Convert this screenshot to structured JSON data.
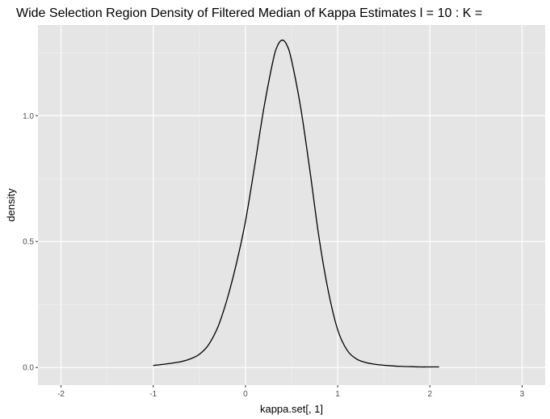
{
  "chart_data": {
    "type": "line",
    "title": "Wide Selection Region Density of Filtered Median of Kappa Estimates l = 10 : K =",
    "xlabel": "kappa.set[, 1]",
    "ylabel": "density",
    "xlim": [
      -2.25,
      3.25
    ],
    "ylim": [
      -0.07,
      1.36
    ],
    "x_ticks": [
      -2,
      -1,
      0,
      1,
      2,
      3
    ],
    "x_tick_labels": [
      "-2",
      "-1",
      "0",
      "1",
      "2",
      "3"
    ],
    "y_ticks": [
      0.0,
      0.5,
      1.0
    ],
    "y_tick_labels": [
      "0.0",
      "0.5",
      "1.0"
    ],
    "grid": true,
    "colors": {
      "panel": "#e5e5e5",
      "grid_major": "#ffffff",
      "line": "#000000"
    },
    "series": [
      {
        "x": [
          -1.0,
          -0.9,
          -0.8,
          -0.7,
          -0.6,
          -0.5,
          -0.4,
          -0.3,
          -0.2,
          -0.1,
          0.0,
          0.1,
          0.2,
          0.3,
          0.35,
          0.4,
          0.45,
          0.5,
          0.6,
          0.7,
          0.8,
          0.9,
          1.0,
          1.1,
          1.2,
          1.3,
          1.4,
          1.5,
          1.6,
          1.7,
          1.8,
          1.9,
          2.0,
          2.1
        ],
        "values": [
          0.008,
          0.012,
          0.017,
          0.023,
          0.034,
          0.052,
          0.09,
          0.16,
          0.27,
          0.41,
          0.58,
          0.8,
          1.03,
          1.22,
          1.28,
          1.3,
          1.28,
          1.22,
          1.03,
          0.78,
          0.51,
          0.3,
          0.15,
          0.07,
          0.035,
          0.02,
          0.013,
          0.009,
          0.006,
          0.004,
          0.003,
          0.002,
          0.002,
          0.002
        ]
      }
    ]
  }
}
